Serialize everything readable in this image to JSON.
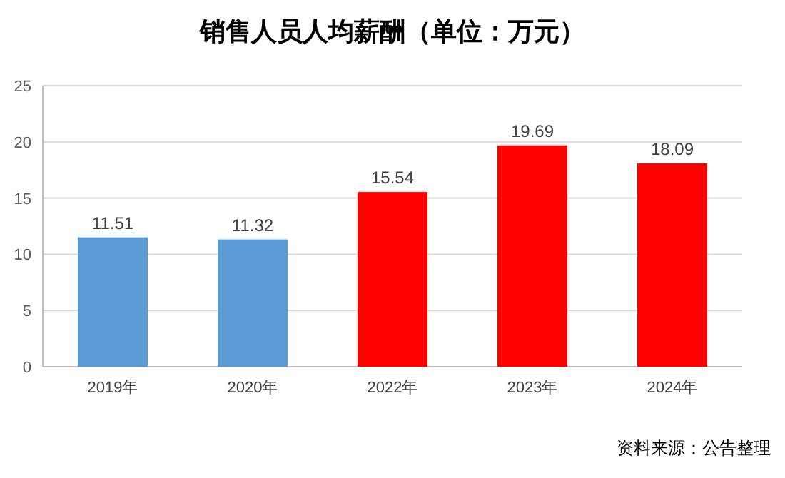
{
  "chart_data": {
    "type": "bar",
    "title": "销售人员人均薪酬（单位：万元）",
    "categories": [
      "2019年",
      "2020年",
      "2022年",
      "2023年",
      "2024年"
    ],
    "values": [
      11.51,
      11.32,
      15.54,
      19.69,
      18.09
    ],
    "colors": [
      "#5b9bd5",
      "#5b9bd5",
      "#ff0000",
      "#ff0000",
      "#ff0000"
    ],
    "ylim": [
      0,
      25
    ],
    "yticks": [
      0,
      5,
      10,
      15,
      20,
      25
    ],
    "grid": "y",
    "data_labels": true,
    "annotations": [
      "资料来源：公告整理"
    ]
  }
}
